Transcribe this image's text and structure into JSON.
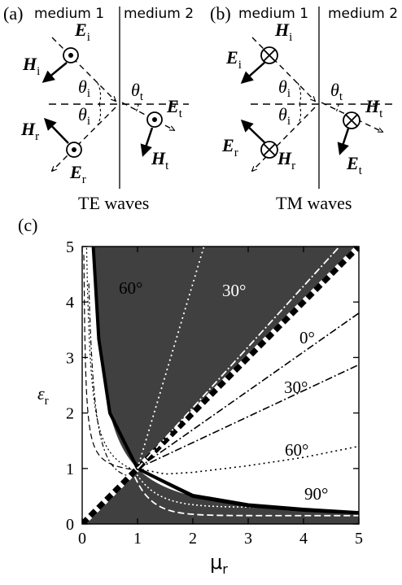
{
  "panel_a": {
    "tag": "(a)",
    "medium1": "medium 1",
    "medium2": "medium 2",
    "caption": "TE waves",
    "vectors": {
      "Ei": "E",
      "Ei_sub": "i",
      "Hi": "H",
      "Hi_sub": "i",
      "Hr": "H",
      "Hr_sub": "r",
      "Er": "E",
      "Er_sub": "r",
      "Et": "E",
      "Et_sub": "t",
      "Ht": "H",
      "Ht_sub": "t"
    },
    "angles": {
      "theta_i1": "θ",
      "theta_i1_sub": "i",
      "theta_i2": "θ",
      "theta_i2_sub": "i",
      "theta_t": "θ",
      "theta_t_sub": "t"
    }
  },
  "panel_b": {
    "tag": "(b)",
    "medium1": "medium 1",
    "medium2": "medium 2",
    "caption": "TM waves",
    "vectors": {
      "Hi": "H",
      "Hi_sub": "i",
      "Ei": "E",
      "Ei_sub": "i",
      "Er": "E",
      "Er_sub": "r",
      "Hr": "H",
      "Hr_sub": "r",
      "Ht": "H",
      "Ht_sub": "t",
      "Et": "E",
      "Et_sub": "t"
    },
    "angles": {
      "theta_i1": "θ",
      "theta_i1_sub": "i",
      "theta_i2": "θ",
      "theta_i2_sub": "i",
      "theta_t": "θ",
      "theta_t_sub": "t"
    }
  },
  "panel_c": {
    "tag": "(c)",
    "xlabel": "μ",
    "xlabel_sub": "r",
    "ylabel": "ε",
    "ylabel_sub": "r",
    "xticks": [
      "0",
      "1",
      "2",
      "3",
      "4",
      "5"
    ],
    "yticks": [
      "0",
      "1",
      "2",
      "3",
      "4",
      "5"
    ],
    "annotations": {
      "white_60": "60°",
      "white_30": "30°",
      "black_0": "0°",
      "black_30": "30°",
      "black_60": "60°",
      "black_90": "90°"
    }
  },
  "colors": {
    "shade": "#404040",
    "line": "#000000",
    "background": "#ffffff"
  },
  "chart_data": {
    "type": "line",
    "title": "",
    "xlabel": "μr",
    "ylabel": "εr",
    "xlim": [
      0,
      5
    ],
    "ylim": [
      0,
      5
    ],
    "grid": false,
    "shaded_regions": "dark gray where (εr - μr)(εr·μr - 1) > 0",
    "series": [
      {
        "label": "εr = μr",
        "style": "thick dashed",
        "x": [
          0,
          5
        ],
        "y": [
          0,
          5
        ]
      },
      {
        "label": "εr = 1/μr",
        "style": "thick solid",
        "x": [
          0.2,
          0.3,
          0.5,
          1,
          2,
          3,
          4,
          5
        ],
        "y": [
          5,
          3.33,
          2,
          1,
          0.5,
          0.33,
          0.25,
          0.2
        ]
      },
      {
        "label": "0°",
        "style": "dash-dot",
        "x": [
          1,
          5
        ],
        "y": [
          1,
          3.8
        ]
      },
      {
        "label": "30°",
        "style": "dash-dot",
        "x": [
          1,
          5
        ],
        "y": [
          1,
          2.87
        ]
      },
      {
        "label": "60°",
        "style": "dotted",
        "x": [
          1,
          1.5,
          2,
          3,
          4,
          5
        ],
        "y": [
          1,
          0.9,
          0.93,
          1.05,
          1.2,
          1.4
        ]
      },
      {
        "label": "90°",
        "style": "solid",
        "x": [
          1,
          2,
          3,
          4,
          5
        ],
        "y": [
          1,
          0.52,
          0.35,
          0.27,
          0.21
        ]
      },
      {
        "label": "30° (white)",
        "style": "white dash-dot",
        "x": [
          1,
          4.65
        ],
        "y": [
          1,
          5
        ]
      },
      {
        "label": "60° (white)",
        "style": "white dotted",
        "x": [
          1,
          2.2
        ],
        "y": [
          1,
          5
        ]
      }
    ]
  }
}
